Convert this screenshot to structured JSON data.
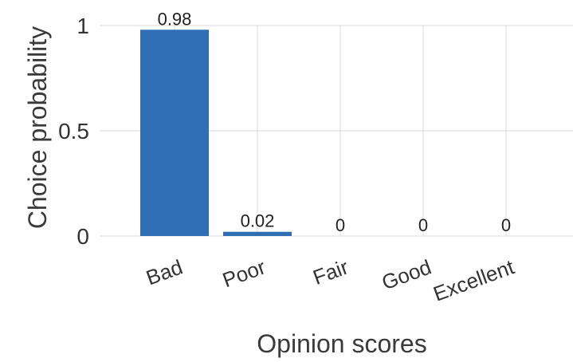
{
  "chart_data": {
    "type": "bar",
    "title": "",
    "xlabel": "Opinion scores",
    "ylabel": "Choice probability",
    "categories": [
      "Bad",
      "Poor",
      "Fair",
      "Good",
      "Excellent"
    ],
    "values": [
      0.98,
      0.02,
      0,
      0,
      0
    ],
    "data_labels": [
      "0.98",
      "0.02",
      "0",
      "0",
      "0"
    ],
    "ylim": [
      0,
      1
    ],
    "yticks": [
      0,
      0.5,
      1
    ],
    "ytick_labels": [
      "0",
      "0.5",
      "1"
    ],
    "grid": true,
    "bar_color": "#2f6db5",
    "grid_color": "#d9d9d9"
  }
}
